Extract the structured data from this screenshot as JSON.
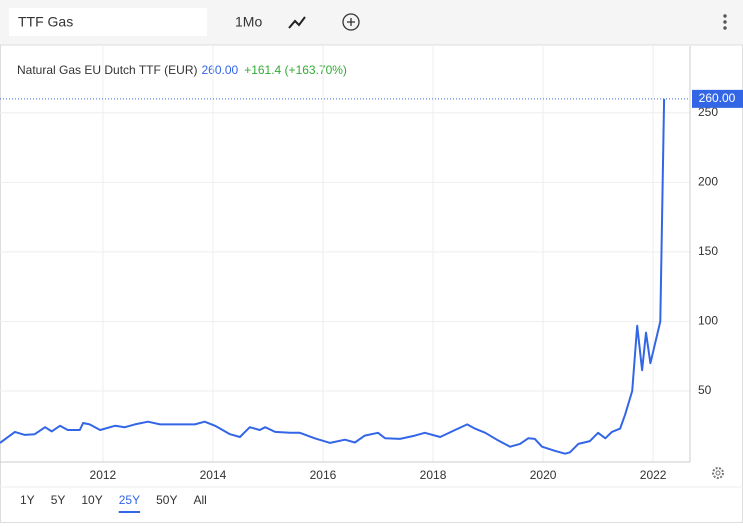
{
  "toolbar": {
    "search": "TTF Gas",
    "interval": "1Mo"
  },
  "legend": {
    "change": "+161.4 (+163.70%)",
    "last_label": "260.00"
  },
  "chart_data": {
    "type": "line",
    "series": [
      {
        "name": "Natural Gas EU Dutch TTF (EUR)",
        "color": "#3366e6",
        "x": [
          2010.13,
          2010.4,
          2010.58,
          2010.76,
          2010.95,
          2011.07,
          2011.22,
          2011.36,
          2011.58,
          2011.64,
          2011.76,
          2011.95,
          2012.22,
          2012.4,
          2012.58,
          2012.82,
          2013.04,
          2013.31,
          2013.67,
          2013.85,
          2014.04,
          2014.31,
          2014.49,
          2014.67,
          2014.85,
          2014.95,
          2015.13,
          2015.4,
          2015.58,
          2015.85,
          2016.13,
          2016.4,
          2016.58,
          2016.76,
          2017.0,
          2017.13,
          2017.4,
          2017.67,
          2017.85,
          2018.13,
          2018.4,
          2018.62,
          2018.76,
          2018.95,
          2019.16,
          2019.4,
          2019.58,
          2019.73,
          2019.85,
          2019.98,
          2020.22,
          2020.4,
          2020.49,
          2020.64,
          2020.85,
          2021.0,
          2021.13,
          2021.25,
          2021.4,
          2021.49,
          2021.62,
          2021.71,
          2021.8,
          2021.87,
          2021.95,
          2022.13,
          2022.2
        ],
        "values": [
          12.7,
          20.6,
          18.5,
          19,
          24,
          21,
          25,
          22,
          22,
          27,
          26,
          22,
          25,
          24,
          26,
          28,
          26,
          26,
          26,
          28,
          25,
          19,
          17,
          24,
          22,
          24,
          20.6,
          20,
          20,
          16,
          12.7,
          15,
          13,
          18,
          20,
          16,
          15.6,
          18,
          20,
          17,
          22,
          26,
          23,
          20,
          15,
          10,
          12,
          16,
          15.6,
          10,
          7,
          5,
          6,
          12,
          14,
          20,
          16,
          20.6,
          23,
          33,
          50,
          97,
          65,
          92,
          70,
          100,
          260
        ]
      }
    ],
    "xlim": [
      2010.13,
      2022.67
    ],
    "xticks": [
      2012,
      2014,
      2016,
      2018,
      2020,
      2022
    ],
    "ylim": [
      -1,
      298
    ],
    "yticks": [
      50,
      100,
      150,
      200,
      250
    ],
    "grid": true
  },
  "range_buttons": [
    "1Y",
    "5Y",
    "10Y",
    "25Y",
    "50Y",
    "All"
  ],
  "active_range": 3
}
